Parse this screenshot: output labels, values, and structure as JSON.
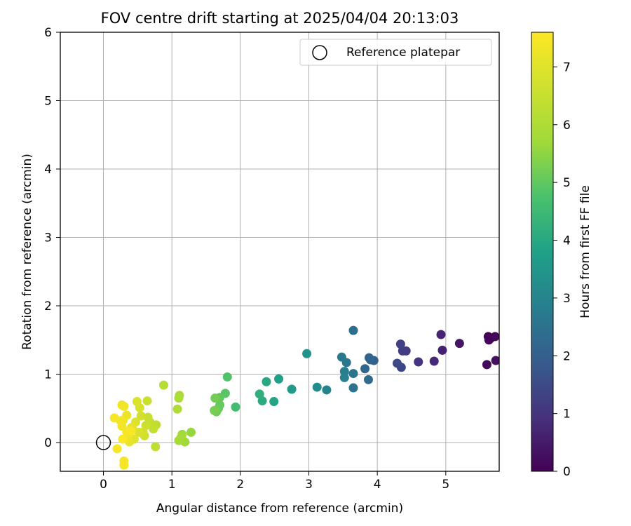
{
  "chart_data": {
    "type": "scatter",
    "title": "FOV centre drift starting at 2025/04/04 20:13:03",
    "xlabel": "Angular distance from reference (arcmin)",
    "ylabel": "Rotation from reference (arcmin)",
    "xlim": [
      -0.63,
      5.78
    ],
    "ylim": [
      -0.42,
      6.0
    ],
    "x_ticks": [
      "0",
      "1",
      "2",
      "3",
      "4",
      "5"
    ],
    "y_ticks": [
      "0",
      "1",
      "2",
      "3",
      "4",
      "5",
      "6"
    ],
    "grid": true,
    "legend": {
      "position": "top-right",
      "entries": [
        {
          "label": "Reference platepar",
          "marker": "open-circle"
        }
      ]
    },
    "reference_point": {
      "x": 0,
      "y": 0
    },
    "colorbar": {
      "label": "Hours from first FF file",
      "colormap": "viridis",
      "range": [
        0,
        7.6
      ],
      "ticks": [
        "0",
        "1",
        "2",
        "3",
        "4",
        "5",
        "6",
        "7"
      ]
    },
    "points": [
      {
        "x": 5.62,
        "y": 1.55,
        "c": 0.0
      },
      {
        "x": 5.65,
        "y": 1.52,
        "c": 0.05
      },
      {
        "x": 5.63,
        "y": 1.5,
        "c": 0.1
      },
      {
        "x": 5.72,
        "y": 1.55,
        "c": 0.15
      },
      {
        "x": 5.6,
        "y": 1.14,
        "c": 0.2
      },
      {
        "x": 5.73,
        "y": 1.2,
        "c": 0.25
      },
      {
        "x": 5.2,
        "y": 1.45,
        "c": 0.4
      },
      {
        "x": 4.95,
        "y": 1.35,
        "c": 0.6
      },
      {
        "x": 4.93,
        "y": 1.58,
        "c": 0.7
      },
      {
        "x": 4.83,
        "y": 1.19,
        "c": 0.8
      },
      {
        "x": 4.6,
        "y": 1.18,
        "c": 1.0
      },
      {
        "x": 4.42,
        "y": 1.34,
        "c": 1.1
      },
      {
        "x": 4.37,
        "y": 1.34,
        "c": 1.2
      },
      {
        "x": 4.34,
        "y": 1.44,
        "c": 1.3
      },
      {
        "x": 4.35,
        "y": 1.1,
        "c": 1.4
      },
      {
        "x": 4.29,
        "y": 1.16,
        "c": 1.5
      },
      {
        "x": 3.95,
        "y": 1.2,
        "c": 2.0
      },
      {
        "x": 3.88,
        "y": 1.24,
        "c": 2.1
      },
      {
        "x": 3.9,
        "y": 1.21,
        "c": 2.15
      },
      {
        "x": 3.82,
        "y": 1.08,
        "c": 2.2
      },
      {
        "x": 3.87,
        "y": 0.92,
        "c": 2.3
      },
      {
        "x": 3.65,
        "y": 1.64,
        "c": 2.4
      },
      {
        "x": 3.65,
        "y": 0.8,
        "c": 2.5
      },
      {
        "x": 3.65,
        "y": 1.01,
        "c": 2.55
      },
      {
        "x": 3.55,
        "y": 1.17,
        "c": 2.6
      },
      {
        "x": 3.48,
        "y": 1.25,
        "c": 2.7
      },
      {
        "x": 3.52,
        "y": 1.04,
        "c": 2.8
      },
      {
        "x": 3.52,
        "y": 0.95,
        "c": 2.9
      },
      {
        "x": 3.26,
        "y": 0.77,
        "c": 3.0
      },
      {
        "x": 3.12,
        "y": 0.81,
        "c": 3.2
      },
      {
        "x": 2.97,
        "y": 1.3,
        "c": 3.4
      },
      {
        "x": 2.75,
        "y": 0.78,
        "c": 3.6
      },
      {
        "x": 2.56,
        "y": 0.93,
        "c": 3.8
      },
      {
        "x": 2.49,
        "y": 0.6,
        "c": 3.9
      },
      {
        "x": 2.38,
        "y": 0.89,
        "c": 4.0
      },
      {
        "x": 2.32,
        "y": 0.61,
        "c": 4.1
      },
      {
        "x": 2.28,
        "y": 0.71,
        "c": 4.2
      },
      {
        "x": 1.93,
        "y": 0.52,
        "c": 4.6
      },
      {
        "x": 1.81,
        "y": 0.96,
        "c": 4.8
      },
      {
        "x": 1.78,
        "y": 0.72,
        "c": 4.9
      },
      {
        "x": 1.7,
        "y": 0.66,
        "c": 5.0
      },
      {
        "x": 1.7,
        "y": 0.55,
        "c": 5.05
      },
      {
        "x": 1.68,
        "y": 0.5,
        "c": 5.1
      },
      {
        "x": 1.65,
        "y": 0.45,
        "c": 5.15
      },
      {
        "x": 1.63,
        "y": 0.65,
        "c": 5.2
      },
      {
        "x": 1.62,
        "y": 0.47,
        "c": 5.25
      },
      {
        "x": 1.28,
        "y": 0.15,
        "c": 5.6
      },
      {
        "x": 1.19,
        "y": 0.01,
        "c": 5.7
      },
      {
        "x": 1.15,
        "y": 0.12,
        "c": 5.75
      },
      {
        "x": 1.13,
        "y": 0.07,
        "c": 5.8
      },
      {
        "x": 1.1,
        "y": 0.03,
        "c": 5.85
      },
      {
        "x": 1.11,
        "y": 0.69,
        "c": 5.9
      },
      {
        "x": 1.1,
        "y": 0.65,
        "c": 5.95
      },
      {
        "x": 1.08,
        "y": 0.49,
        "c": 6.0
      },
      {
        "x": 0.88,
        "y": 0.84,
        "c": 6.1
      },
      {
        "x": 0.76,
        "y": -0.06,
        "c": 6.3
      },
      {
        "x": 0.77,
        "y": 0.26,
        "c": 6.35
      },
      {
        "x": 0.73,
        "y": 0.2,
        "c": 6.4
      },
      {
        "x": 0.68,
        "y": 0.3,
        "c": 6.45
      },
      {
        "x": 0.65,
        "y": 0.37,
        "c": 6.5
      },
      {
        "x": 0.64,
        "y": 0.61,
        "c": 6.55
      },
      {
        "x": 0.62,
        "y": 0.25,
        "c": 6.6
      },
      {
        "x": 0.6,
        "y": 0.1,
        "c": 6.65
      },
      {
        "x": 0.58,
        "y": 0.15,
        "c": 6.7
      },
      {
        "x": 0.55,
        "y": 0.39,
        "c": 6.75
      },
      {
        "x": 0.53,
        "y": 0.51,
        "c": 6.8
      },
      {
        "x": 0.52,
        "y": 0.15,
        "c": 6.85
      },
      {
        "x": 0.49,
        "y": 0.6,
        "c": 6.9
      },
      {
        "x": 0.47,
        "y": 0.3,
        "c": 6.95
      },
      {
        "x": 0.45,
        "y": 0.05,
        "c": 7.0
      },
      {
        "x": 0.43,
        "y": 0.19,
        "c": 7.05
      },
      {
        "x": 0.41,
        "y": 0.22,
        "c": 7.1
      },
      {
        "x": 0.38,
        "y": 0.01,
        "c": 7.15
      },
      {
        "x": 0.34,
        "y": 0.4,
        "c": 7.2
      },
      {
        "x": 0.37,
        "y": 0.12,
        "c": 7.25
      },
      {
        "x": 0.32,
        "y": 0.06,
        "c": 7.3
      },
      {
        "x": 0.3,
        "y": 0.53,
        "c": 7.32
      },
      {
        "x": 0.27,
        "y": 0.55,
        "c": 7.34
      },
      {
        "x": 0.29,
        "y": 0.33,
        "c": 7.36
      },
      {
        "x": 0.27,
        "y": 0.24,
        "c": 7.38
      },
      {
        "x": 0.25,
        "y": 0.32,
        "c": 7.4
      },
      {
        "x": 0.3,
        "y": -0.27,
        "c": 7.42
      },
      {
        "x": 0.3,
        "y": -0.33,
        "c": 7.44
      },
      {
        "x": 0.2,
        "y": -0.09,
        "c": 7.46
      },
      {
        "x": 0.16,
        "y": 0.36,
        "c": 7.48
      },
      {
        "x": 0.34,
        "y": 0.16,
        "c": 7.5
      },
      {
        "x": 0.4,
        "y": 0.17,
        "c": 7.52
      },
      {
        "x": 0.28,
        "y": 0.05,
        "c": 7.54
      }
    ]
  }
}
